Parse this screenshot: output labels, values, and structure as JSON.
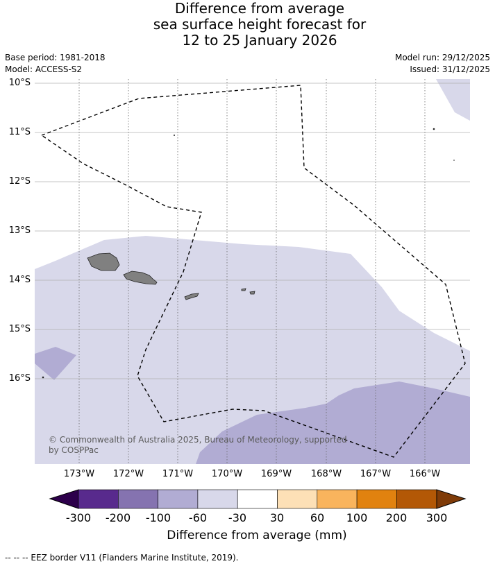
{
  "title": {
    "line1": "Difference from average",
    "line2": "sea surface height forecast for",
    "line3": "12 to 25 January 2026"
  },
  "meta": {
    "base_period": "Base period: 1981-2018",
    "model": "Model: ACCESS-S2",
    "model_run": "Model run: 29/12/2025",
    "issued": "Issued: 31/12/2025"
  },
  "map": {
    "latitude_labels": [
      "10°S",
      "11°S",
      "12°S",
      "13°S",
      "14°S",
      "15°S",
      "16°S"
    ],
    "longitude_labels": [
      "173°W",
      "172°W",
      "171°W",
      "170°W",
      "169°W",
      "168°W",
      "167°W",
      "166°W"
    ],
    "extent": {
      "lon_min": -173.9,
      "lon_max": -165.1,
      "lat_min": -17.7,
      "lat_max": -9.9
    },
    "copyright_line1": "© Commonwealth of Australia 2025, Bureau of Meteorology, supported",
    "copyright_line2": "by COSPPac",
    "colors": {
      "land": "#808080",
      "class_minus60_minus30": "#d8d8ea",
      "class_minus100_minus60": "#b1acd3"
    }
  },
  "colorbar": {
    "title": "Difference from average (mm)",
    "tick_labels": [
      "-300",
      "-200",
      "-100",
      "-60",
      "-30",
      "30",
      "60",
      "100",
      "200",
      "300"
    ],
    "colors": [
      "#582a8d",
      "#8573b0",
      "#b1acd3",
      "#d8d8ea",
      "#ffffff",
      "#fde0b6",
      "#f9b45d",
      "#e1820f",
      "#b35806"
    ],
    "extend_low_color": "#2d004b",
    "extend_high_color": "#7f3b08"
  },
  "footer": {
    "eez_note": "--  --  -- EEZ border V11 (Flanders Marine Institute, 2019)."
  }
}
